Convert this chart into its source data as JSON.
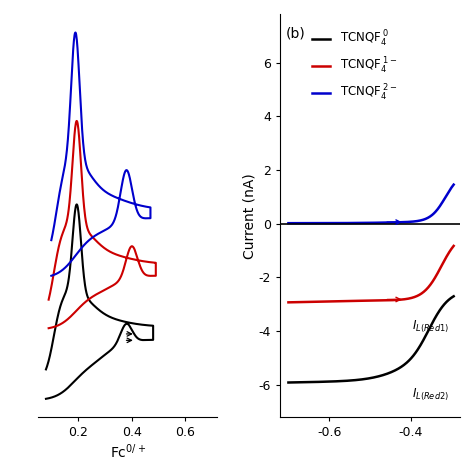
{
  "panel_a": {
    "xlabel": "Fc$^{0/+}$",
    "xlim": [
      0.05,
      0.72
    ],
    "xticks": [
      0.2,
      0.4,
      0.6
    ],
    "xtick_labels": [
      "0.2",
      "0.4",
      "0.6"
    ]
  },
  "panel_b": {
    "label": "(b)",
    "ylabel": "Current (nA)",
    "xlim": [
      -0.72,
      -0.28
    ],
    "ylim": [
      -7.2,
      7.8
    ],
    "xticks": [
      -0.6,
      -0.4
    ],
    "xtick_labels": [
      "-0.6",
      "-0.4"
    ],
    "yticks": [
      -6,
      -4,
      -2,
      0,
      2,
      4,
      6
    ],
    "ytick_labels": [
      "-6",
      "-4",
      "-2",
      "0",
      "2",
      "4",
      "6"
    ]
  },
  "colors": {
    "black": "#000000",
    "red": "#cc0000",
    "blue": "#0000cc"
  },
  "figsize": [
    4.74,
    4.74
  ],
  "dpi": 100
}
